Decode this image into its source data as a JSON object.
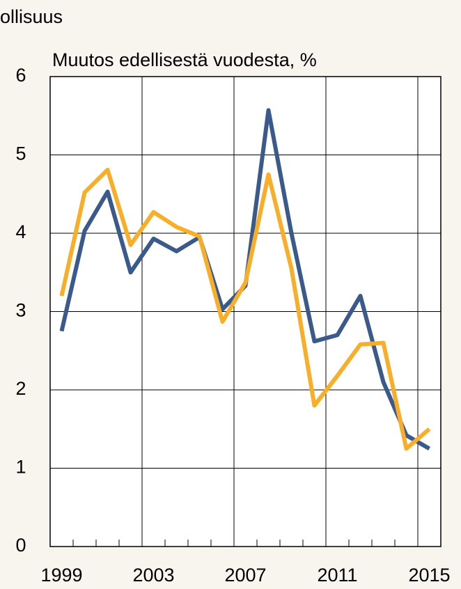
{
  "chart_data": {
    "type": "line",
    "title": "ollisuus",
    "subtitle": "Muutos edellisestä vuodesta, %",
    "categories": [
      "1999",
      null,
      null,
      null,
      "2003",
      null,
      null,
      null,
      "2007",
      null,
      null,
      null,
      "2011",
      null,
      null,
      null,
      "2015"
    ],
    "series": [
      {
        "color": "#3a5a8c",
        "values": [
          2.75,
          4.03,
          4.53,
          3.5,
          3.93,
          3.77,
          3.95,
          3.03,
          3.33,
          5.57,
          4.0,
          2.62,
          2.7,
          3.2,
          2.1,
          1.42,
          1.25
        ]
      },
      {
        "color": "#f9ae2a",
        "values": [
          3.2,
          4.52,
          4.81,
          3.85,
          4.27,
          4.08,
          3.96,
          2.87,
          3.37,
          4.75,
          3.55,
          1.8,
          2.18,
          2.58,
          2.6,
          1.25,
          1.5
        ]
      }
    ],
    "ylim": [
      0,
      6
    ],
    "yticks": [
      0,
      1,
      2,
      3,
      4,
      5,
      6
    ],
    "grid": true
  }
}
